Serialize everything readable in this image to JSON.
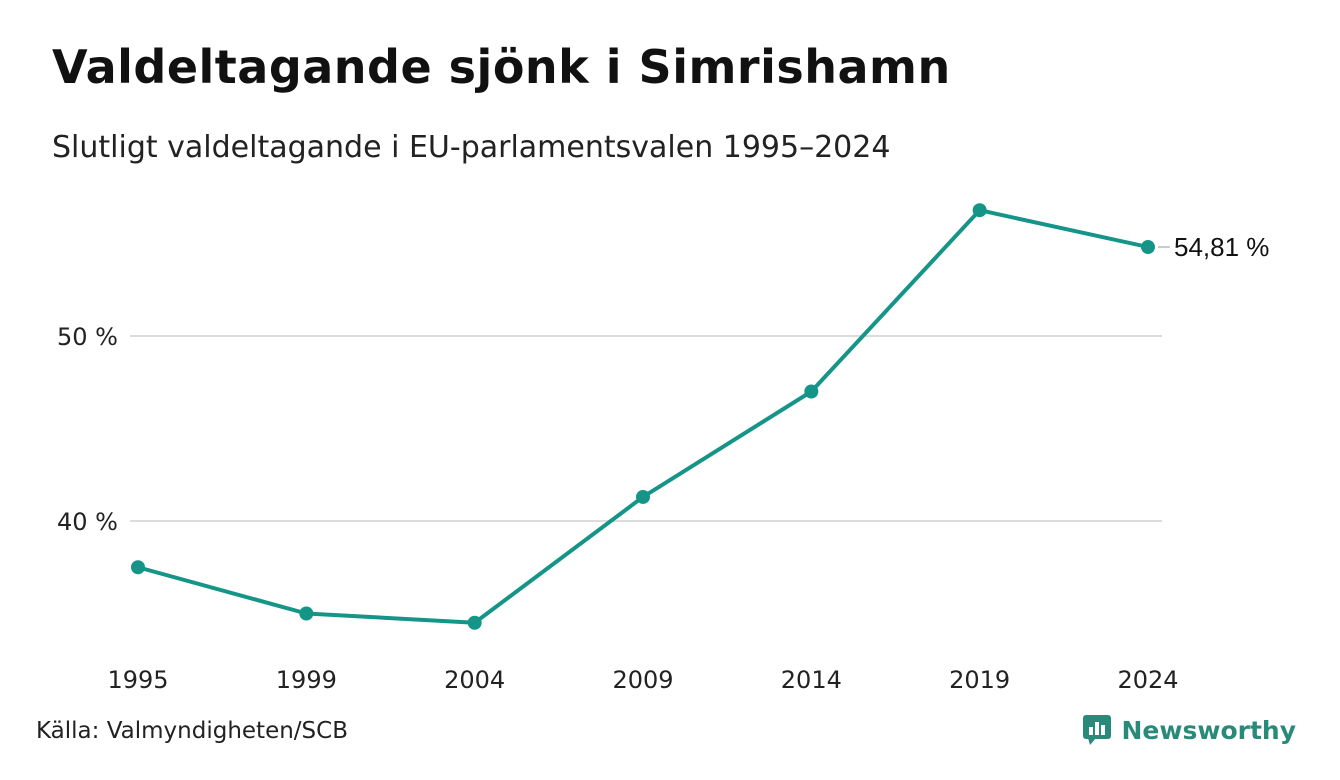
{
  "header": {
    "title": "Valdeltagande sjönk i Simrishamn",
    "subtitle": "Slutligt valdeltagande i EU-parlamentsvalen 1995–2024"
  },
  "footer": {
    "source": "Källa: Valmyndigheten/SCB",
    "brand": "Newsworthy"
  },
  "colors": {
    "line": "#159587",
    "grid": "#dcdcdc",
    "brand": "#2a8a7a"
  },
  "chart_data": {
    "type": "line",
    "title": "Valdeltagande sjönk i Simrishamn",
    "subtitle": "Slutligt valdeltagande i EU-parlamentsvalen 1995–2024",
    "x": [
      "1995",
      "1999",
      "2004",
      "2009",
      "2014",
      "2019",
      "2024"
    ],
    "series": [
      {
        "values": [
          37.5,
          35.0,
          34.5,
          41.3,
          47.0,
          56.8,
          54.81
        ]
      }
    ],
    "y_ticks": [
      {
        "value": 40,
        "label": "40 %"
      },
      {
        "value": 50,
        "label": "50 %"
      }
    ],
    "ylim": [
      33,
      59
    ],
    "end_label": "54,81 %",
    "grid": true,
    "legend": "none"
  }
}
